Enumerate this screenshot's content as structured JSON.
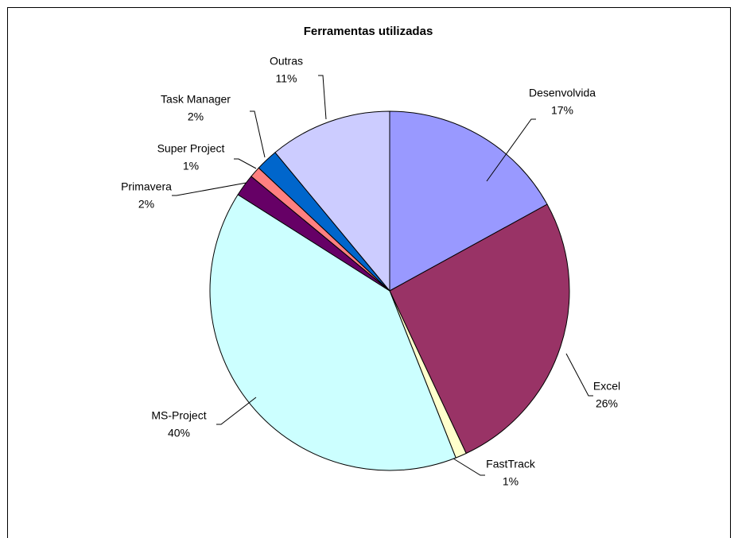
{
  "chart_data": {
    "type": "pie",
    "title": "Ferramentas utilizadas",
    "categories": [
      "Desenvolvida",
      "Excel",
      "FastTrack",
      "MS-Project",
      "Primavera",
      "Super Project",
      "Task Manager",
      "Outras"
    ],
    "values": [
      17,
      26,
      1,
      40,
      2,
      1,
      2,
      11
    ],
    "value_labels": [
      "17%",
      "26%",
      "1%",
      "40%",
      "2%",
      "1%",
      "2%",
      "11%"
    ],
    "colors": [
      "#9999ff",
      "#993366",
      "#ffffcc",
      "#ccffff",
      "#660066",
      "#ff8080",
      "#0066cc",
      "#ccccff"
    ]
  }
}
